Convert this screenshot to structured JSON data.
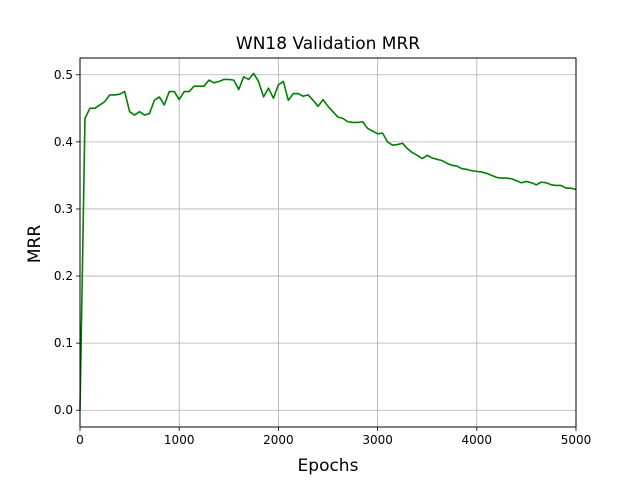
{
  "chart_data": {
    "type": "line",
    "title": "WN18 Validation MRR",
    "xlabel": "Epochs",
    "ylabel": "MRR",
    "xlim": [
      0,
      5000
    ],
    "ylim": [
      -0.025,
      0.525
    ],
    "xticks": [
      0,
      1000,
      2000,
      3000,
      4000,
      5000
    ],
    "xtick_labels": [
      "0",
      "1000",
      "2000",
      "3000",
      "4000",
      "5000"
    ],
    "yticks": [
      0.0,
      0.1,
      0.2,
      0.3,
      0.4,
      0.5
    ],
    "ytick_labels": [
      "0.0",
      "0.1",
      "0.2",
      "0.3",
      "0.4",
      "0.5"
    ],
    "grid": true,
    "line_color": "#008000",
    "series": [
      {
        "x": [
          0,
          50,
          100,
          150,
          200,
          250,
          300,
          350,
          400,
          450,
          500,
          550,
          600,
          650,
          700,
          750,
          800,
          850,
          900,
          950,
          1000,
          1050,
          1100,
          1150,
          1200,
          1250,
          1300,
          1350,
          1400,
          1450,
          1500,
          1550,
          1600,
          1650,
          1700,
          1750,
          1800,
          1850,
          1900,
          1950,
          2000,
          2050,
          2100,
          2150,
          2200,
          2250,
          2300,
          2350,
          2400,
          2450,
          2500,
          2550,
          2600,
          2650,
          2700,
          2750,
          2800,
          2850,
          2900,
          2950,
          3000,
          3050,
          3100,
          3150,
          3200,
          3250,
          3300,
          3350,
          3400,
          3450,
          3500,
          3550,
          3600,
          3650,
          3700,
          3750,
          3800,
          3850,
          3900,
          3950,
          4000,
          4050,
          4100,
          4150,
          4200,
          4250,
          4300,
          4350,
          4400,
          4450,
          4500,
          4550,
          4600,
          4650,
          4700,
          4750,
          4800,
          4850,
          4900,
          4950,
          5000
        ],
        "y": [
          0.0,
          0.435,
          0.45,
          0.45,
          0.455,
          0.46,
          0.47,
          0.47,
          0.471,
          0.475,
          0.445,
          0.44,
          0.445,
          0.44,
          0.442,
          0.462,
          0.467,
          0.455,
          0.475,
          0.475,
          0.463,
          0.475,
          0.475,
          0.483,
          0.483,
          0.483,
          0.492,
          0.488,
          0.49,
          0.493,
          0.493,
          0.492,
          0.478,
          0.497,
          0.493,
          0.502,
          0.49,
          0.467,
          0.48,
          0.465,
          0.485,
          0.49,
          0.462,
          0.472,
          0.472,
          0.468,
          0.47,
          0.462,
          0.453,
          0.463,
          0.453,
          0.445,
          0.437,
          0.435,
          0.43,
          0.429,
          0.429,
          0.43,
          0.42,
          0.416,
          0.412,
          0.413,
          0.4,
          0.395,
          0.396,
          0.398,
          0.39,
          0.384,
          0.38,
          0.375,
          0.38,
          0.376,
          0.374,
          0.372,
          0.368,
          0.365,
          0.364,
          0.36,
          0.359,
          0.357,
          0.356,
          0.355,
          0.353,
          0.35,
          0.347,
          0.346,
          0.346,
          0.345,
          0.342,
          0.339,
          0.341,
          0.339,
          0.336,
          0.34,
          0.339,
          0.336,
          0.335,
          0.335,
          0.331,
          0.331,
          0.329
        ]
      }
    ]
  }
}
